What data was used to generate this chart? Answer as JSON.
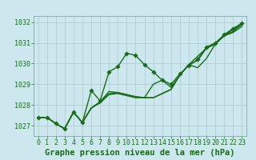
{
  "title": "Graphe pression niveau de la mer (hPa)",
  "background_color": "#cce8ee",
  "grid_color": "#aac8d0",
  "line_color": "#1a6b1a",
  "ylim": [
    1026.5,
    1032.3
  ],
  "yticks": [
    1027,
    1028,
    1029,
    1030,
    1031,
    1032
  ],
  "xlim": [
    -0.5,
    23.5
  ],
  "xticks": [
    0,
    1,
    2,
    3,
    4,
    5,
    6,
    7,
    8,
    9,
    10,
    11,
    12,
    13,
    14,
    15,
    16,
    17,
    18,
    19,
    20,
    21,
    22,
    23
  ],
  "series": [
    [
      1027.4,
      1027.4,
      1027.1,
      1026.85,
      1027.65,
      1027.15,
      1028.7,
      1028.2,
      1029.6,
      1029.85,
      1030.5,
      1030.4,
      1029.95,
      1029.6,
      1029.2,
      1029.0,
      1029.5,
      1029.9,
      1030.2,
      1030.8,
      1031.0,
      1031.4,
      1031.7,
      1031.95
    ],
    [
      1027.4,
      1027.4,
      1027.1,
      1026.85,
      1027.65,
      1027.15,
      1027.85,
      1028.15,
      1028.55,
      1028.6,
      1028.5,
      1028.4,
      1028.35,
      1028.35,
      1028.55,
      1028.75,
      1029.45,
      1029.95,
      1030.35,
      1030.75,
      1030.95,
      1031.35,
      1031.65,
      1031.9
    ],
    [
      1027.4,
      1027.4,
      1027.1,
      1026.85,
      1027.65,
      1027.15,
      1027.85,
      1028.1,
      1028.5,
      1028.55,
      1028.45,
      1028.35,
      1028.35,
      1029.0,
      1029.2,
      1028.85,
      1029.45,
      1029.95,
      1029.8,
      1030.25,
      1030.95,
      1031.35,
      1031.55,
      1031.9
    ],
    [
      1027.4,
      1027.4,
      1027.1,
      1026.85,
      1027.65,
      1027.15,
      1027.85,
      1028.15,
      1028.65,
      1028.6,
      1028.5,
      1028.4,
      1028.35,
      1028.35,
      1028.55,
      1028.75,
      1029.45,
      1029.95,
      1030.15,
      1030.75,
      1030.95,
      1031.35,
      1031.5,
      1031.8
    ]
  ],
  "tick_fontsize": 6.0,
  "xlabel_fontsize": 7.5,
  "line_width": 1.0,
  "marker_size": 2.8
}
